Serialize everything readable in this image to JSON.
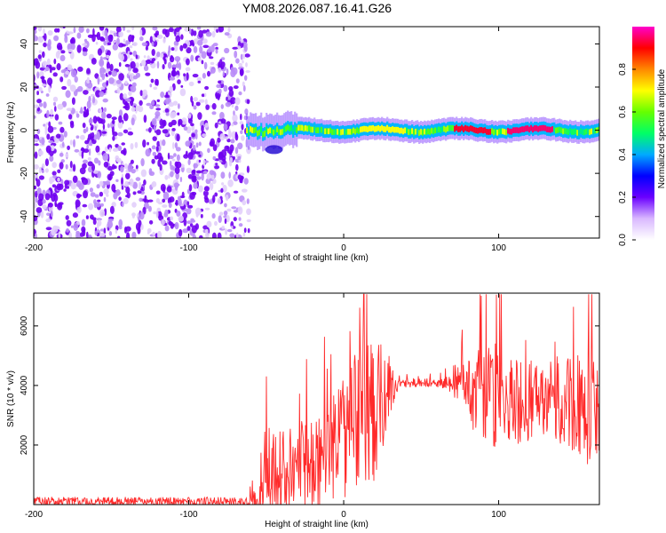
{
  "title": "YM08.2026.087.16.41.G26",
  "chart_data": [
    {
      "type": "heatmap",
      "panel": "spectrogram",
      "xlabel": "Height of straight line (km)",
      "ylabel": "Frequency (Hz)",
      "xlim": [
        -200,
        165
      ],
      "ylim": [
        -50,
        48
      ],
      "xticks": [
        -200,
        -100,
        0,
        100
      ],
      "xtick_labels": [
        "-200",
        "-100",
        "0",
        "100"
      ],
      "yticks": [
        -40,
        -20,
        0,
        20,
        40
      ],
      "ytick_labels": [
        "-40",
        "-20",
        "0",
        "20",
        "40"
      ],
      "noise_region_x": [
        -200,
        -61
      ],
      "signal_band_x": [
        -63,
        165
      ],
      "signal_center_hz": 0,
      "signal_halfwidth_hz": 3,
      "colorbar": {
        "label": "Normalized spectral amplitude",
        "range": [
          0,
          1
        ],
        "ticks": [
          0.0,
          0.2,
          0.4,
          0.6,
          0.8
        ],
        "tick_labels": [
          "0.0",
          "0.2",
          "0.4",
          "0.6",
          "0.8"
        ],
        "colormap": [
          "#ffffff",
          "#d9b8ff",
          "#6a00ff",
          "#0000ff",
          "#00aaff",
          "#00ff66",
          "#66ff00",
          "#ffff00",
          "#ff8800",
          "#ff0000",
          "#ff00cc"
        ]
      }
    },
    {
      "type": "line",
      "panel": "snr",
      "xlabel": "Height of straight line (km)",
      "ylabel": "SNR (10 * v/v)",
      "xlim": [
        -200,
        165
      ],
      "ylim": [
        0,
        7100
      ],
      "xticks": [
        -200,
        -100,
        0,
        100
      ],
      "xtick_labels": [
        "-200",
        "-100",
        "0",
        "100"
      ],
      "yticks": [
        2000,
        4000,
        6000
      ],
      "ytick_labels": [
        "2000",
        "4000",
        "6000"
      ],
      "line_color": "#ff2a2a",
      "series": [
        {
          "name": "SNR",
          "x": [
            -200,
            -150,
            -100,
            -62,
            -55,
            -50,
            -40,
            -30,
            -20,
            -10,
            0,
            10,
            20,
            27,
            35,
            50,
            60,
            70,
            80,
            90,
            100,
            110,
            120,
            130,
            140,
            150,
            160,
            165
          ],
          "mean": [
            120,
            110,
            100,
            110,
            600,
            1100,
            1200,
            1300,
            1400,
            1800,
            2500,
            3000,
            3200,
            3800,
            4050,
            4100,
            4100,
            4050,
            3900,
            3700,
            3600,
            3500,
            3500,
            3600,
            3500,
            3300,
            3200,
            3100
          ],
          "spread": [
            150,
            150,
            150,
            150,
            1200,
            1600,
            1300,
            1500,
            1600,
            1900,
            2300,
            2300,
            2400,
            1500,
            180,
            150,
            150,
            300,
            1200,
            1600,
            1900,
            1500,
            1400,
            1300,
            1500,
            1800,
            1900,
            1500
          ]
        }
      ]
    }
  ]
}
